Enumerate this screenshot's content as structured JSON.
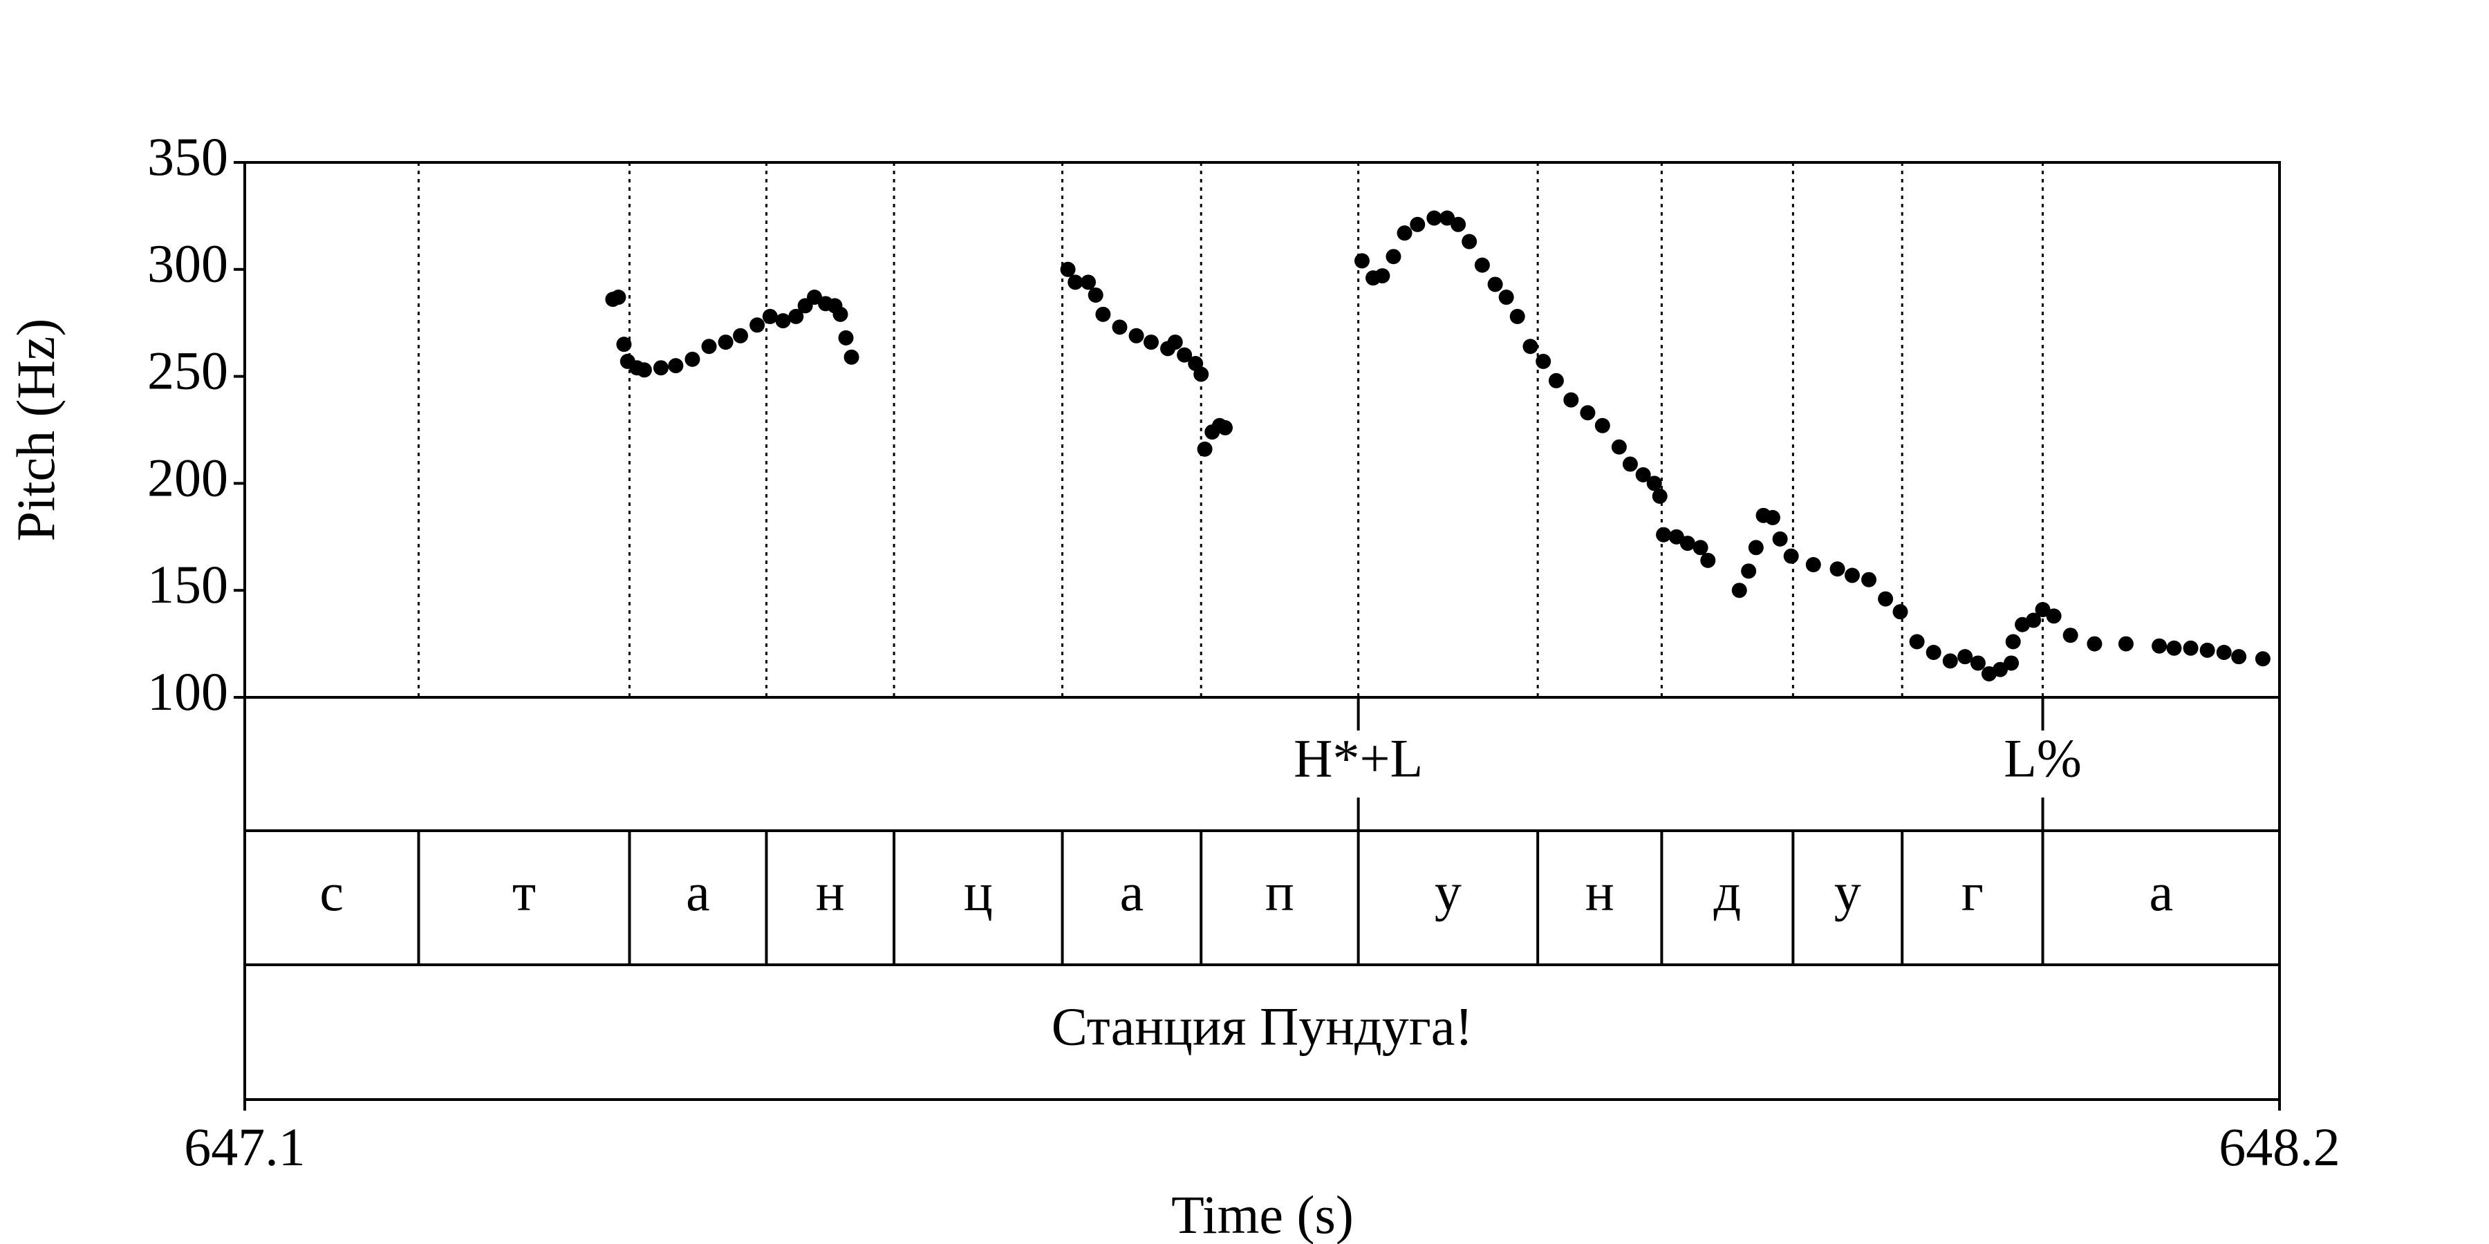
{
  "chart_data": {
    "type": "scatter",
    "x_label": "Time (s)",
    "y_label": "Pitch (Hz)",
    "xlim": [
      647.1,
      648.2
    ],
    "xticks": [
      647.1,
      648.2
    ],
    "ylim": [
      100,
      350
    ],
    "yticks": [
      100,
      150,
      200,
      250,
      300,
      350
    ],
    "color": "#000000",
    "x": [
      647.299,
      647.302,
      647.305,
      647.307,
      647.312,
      647.316,
      647.325,
      647.333,
      647.342,
      647.351,
      647.36,
      647.368,
      647.377,
      647.384,
      647.391,
      647.398,
      647.403,
      647.408,
      647.414,
      647.419,
      647.422,
      647.425,
      647.428,
      647.545,
      647.549,
      647.556,
      647.56,
      647.564,
      647.573,
      647.582,
      647.59,
      647.599,
      647.603,
      647.608,
      647.614,
      647.617,
      647.619,
      647.623,
      647.627,
      647.63,
      647.704,
      647.71,
      647.715,
      647.721,
      647.727,
      647.734,
      647.743,
      647.75,
      647.756,
      647.762,
      647.769,
      647.776,
      647.782,
      647.788,
      647.795,
      647.802,
      647.809,
      647.817,
      647.826,
      647.834,
      647.843,
      647.849,
      647.856,
      647.862,
      647.865,
      647.867,
      647.874,
      647.88,
      647.887,
      647.891,
      647.908,
      647.913,
      647.917,
      647.921,
      647.926,
      647.93,
      647.936,
      647.948,
      647.961,
      647.969,
      647.978,
      647.987,
      647.995,
      648.004,
      648.013,
      648.022,
      648.03,
      648.037,
      648.043,
      648.049,
      648.055,
      648.056,
      648.061,
      648.067,
      648.072,
      648.078,
      648.087,
      648.1,
      648.117,
      648.135,
      648.143,
      648.152,
      648.161,
      648.17,
      648.178,
      648.191
    ],
    "values": [
      286,
      287,
      265,
      257,
      254,
      253,
      254,
      255,
      258,
      264,
      266,
      269,
      274,
      278,
      276,
      278,
      283,
      287,
      284,
      283,
      279,
      268,
      259,
      300,
      294,
      294,
      288,
      279,
      273,
      269,
      266,
      263,
      266,
      260,
      256,
      251,
      216,
      224,
      227,
      226,
      304,
      296,
      297,
      306,
      317,
      321,
      324,
      324,
      321,
      313,
      302,
      293,
      287,
      278,
      264,
      257,
      248,
      239,
      233,
      227,
      217,
      209,
      204,
      200,
      194,
      176,
      175,
      172,
      170,
      164,
      150,
      159,
      170,
      185,
      184,
      174,
      166,
      162,
      160,
      157,
      155,
      146,
      140,
      126,
      121,
      117,
      119,
      116,
      111,
      113,
      116,
      126,
      134,
      136,
      141,
      138,
      129,
      125,
      125,
      124,
      123,
      123,
      122,
      121,
      119,
      118
    ],
    "tone_tier": {
      "times": [
        647.702,
        648.072
      ],
      "labels": [
        "H*+L",
        "L%"
      ]
    },
    "segment_tier": {
      "boundaries": [
        647.194,
        647.308,
        647.382,
        647.451,
        647.542,
        647.617,
        647.702,
        647.799,
        647.866,
        647.937,
        647.996,
        648.072
      ],
      "labels": [
        "с",
        "т",
        "а",
        "н",
        "ц",
        "а",
        "п",
        "у",
        "н",
        "д",
        "у",
        "г",
        "а"
      ]
    },
    "word_tier": {
      "labels": [
        "Станция Пундуга!"
      ]
    }
  }
}
